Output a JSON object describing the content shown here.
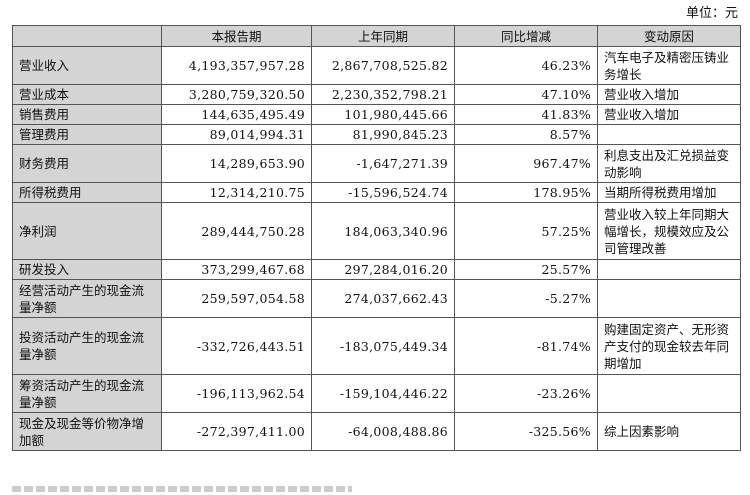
{
  "unit_label": "单位：元",
  "headers": [
    "",
    "本报告期",
    "上年同期",
    "同比增减",
    "变动原因"
  ],
  "rows": [
    {
      "item": "营业收入",
      "current": "4,193,357,957.28",
      "prior": "2,867,708,525.82",
      "change": "46.23%",
      "reason": "汽车电子及精密压铸业务增长"
    },
    {
      "item": "营业成本",
      "current": "3,280,759,320.50",
      "prior": "2,230,352,798.21",
      "change": "47.10%",
      "reason": "营业收入增加"
    },
    {
      "item": "销售费用",
      "current": "144,635,495.49",
      "prior": "101,980,445.66",
      "change": "41.83%",
      "reason": "营业收入增加"
    },
    {
      "item": "管理费用",
      "current": "89,014,994.31",
      "prior": "81,990,845.23",
      "change": "8.57%",
      "reason": ""
    },
    {
      "item": "财务费用",
      "current": "14,289,653.90",
      "prior": "-1,647,271.39",
      "change": "967.47%",
      "reason": "利息支出及汇兑损益变动影响"
    },
    {
      "item": "所得税费用",
      "current": "12,314,210.75",
      "prior": "-15,596,524.74",
      "change": "178.95%",
      "reason": "当期所得税费用增加"
    },
    {
      "item": "净利润",
      "current": "289,444,750.28",
      "prior": "184,063,340.96",
      "change": "57.25%",
      "reason": "营业收入较上年同期大幅增长，规模效应及公司管理改善"
    },
    {
      "item": "研发投入",
      "current": "373,299,467.68",
      "prior": "297,284,016.20",
      "change": "25.57%",
      "reason": ""
    },
    {
      "item": "经营活动产生的现金流量净额",
      "current": "259,597,054.58",
      "prior": "274,037,662.43",
      "change": "-5.27%",
      "reason": ""
    },
    {
      "item": "投资活动产生的现金流量净额",
      "current": "-332,726,443.51",
      "prior": "-183,075,449.34",
      "change": "-81.74%",
      "reason": "购建固定资产、无形资产支付的现金较去年同期增加"
    },
    {
      "item": "筹资活动产生的现金流量净额",
      "current": "-196,113,962.54",
      "prior": "-159,104,446.22",
      "change": "-23.26%",
      "reason": ""
    },
    {
      "item": "现金及现金等价物净增加额",
      "current": "-272,397,411.00",
      "prior": "-64,008,488.86",
      "change": "-325.56%",
      "reason": "综上因素影响"
    }
  ]
}
